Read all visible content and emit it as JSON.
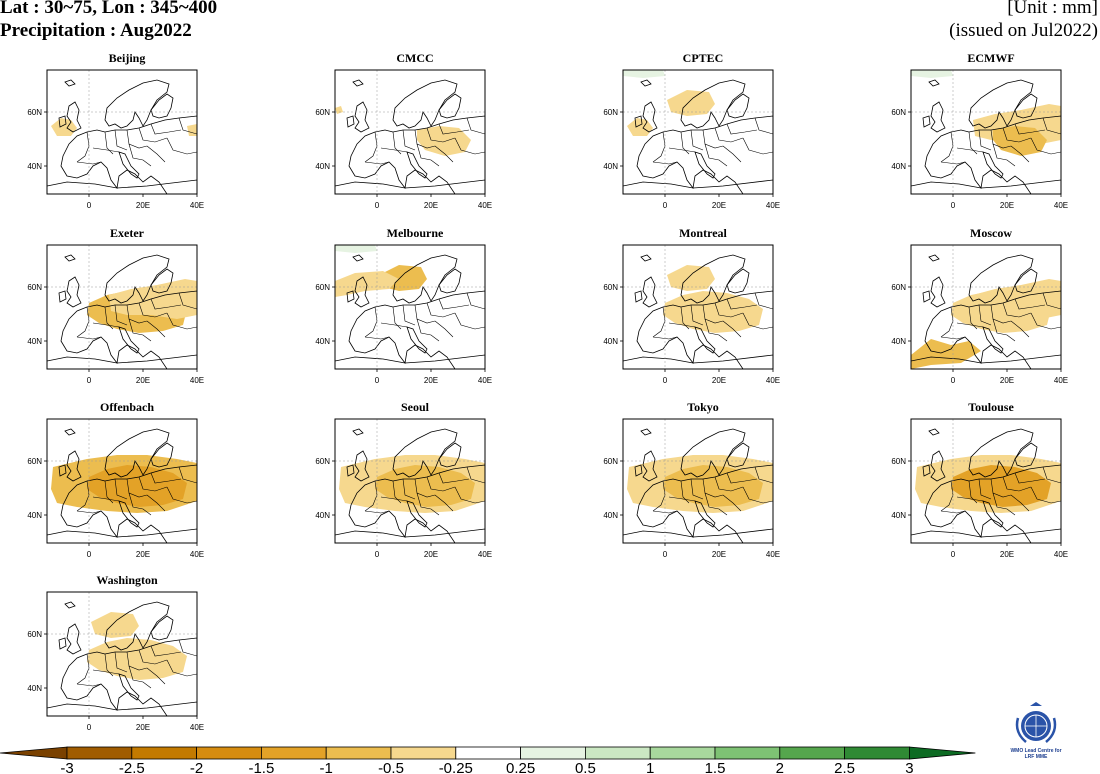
{
  "header": {
    "title_line1": "Lat : 30~75, Lon : 345~400",
    "title_line2": "Precipitation : Aug2022",
    "unit": "[Unit : mm]",
    "issued": "(issued on Jul2022)"
  },
  "axes": {
    "lat_ticks": [
      "60N",
      "40N"
    ],
    "lon_ticks": [
      "0",
      "20E",
      "40E"
    ]
  },
  "colors": {
    "dry": [
      "#7a4100",
      "#a05c00",
      "#c37a00",
      "#d68c10",
      "#e3a227",
      "#ecbd4f",
      "#f6d88e"
    ],
    "neutral": "#ffffff",
    "wet": [
      "#e6f3e2",
      "#cbe8c3",
      "#a8d89d",
      "#7ec274",
      "#55a64d",
      "#2f8a34",
      "#0d6b23"
    ]
  },
  "panels": [
    {
      "name": "Beijing",
      "pattern": [
        {
          "shape": "a",
          "level": 6
        },
        {
          "shape": "h",
          "level": 6
        }
      ]
    },
    {
      "name": "CMCC",
      "pattern": [
        {
          "shape": "b",
          "level": 6
        },
        {
          "shape": "e",
          "level": 6
        }
      ]
    },
    {
      "name": "CPTEC",
      "pattern": [
        {
          "shape": "a",
          "level": 6
        },
        {
          "shape": "c",
          "level": 6
        },
        {
          "shape": "g",
          "level": 8
        }
      ]
    },
    {
      "name": "ECMWF",
      "pattern": [
        {
          "shape": "d",
          "level": 6
        },
        {
          "shape": "e",
          "level": 5
        },
        {
          "shape": "g",
          "level": 8
        }
      ]
    },
    {
      "name": "Exeter",
      "pattern": [
        {
          "shape": "f",
          "level": 5
        },
        {
          "shape": "d",
          "level": 6
        }
      ]
    },
    {
      "name": "Melbourne",
      "pattern": [
        {
          "shape": "c",
          "level": 5
        },
        {
          "shape": "i",
          "level": 6
        },
        {
          "shape": "g",
          "level": 8
        }
      ]
    },
    {
      "name": "Montreal",
      "pattern": [
        {
          "shape": "c",
          "level": 6
        },
        {
          "shape": "f",
          "level": 6
        }
      ]
    },
    {
      "name": "Moscow",
      "pattern": [
        {
          "shape": "d",
          "level": 6
        },
        {
          "shape": "j",
          "level": 5
        },
        {
          "shape": "f",
          "level": 6
        }
      ]
    },
    {
      "name": "Offenbach",
      "pattern": [
        {
          "shape": "k",
          "level": 5
        },
        {
          "shape": "f",
          "level": 4
        }
      ]
    },
    {
      "name": "Seoul",
      "pattern": [
        {
          "shape": "k",
          "level": 6
        },
        {
          "shape": "f",
          "level": 5
        }
      ]
    },
    {
      "name": "Tokyo",
      "pattern": [
        {
          "shape": "k",
          "level": 6
        },
        {
          "shape": "f",
          "level": 5
        }
      ]
    },
    {
      "name": "Toulouse",
      "pattern": [
        {
          "shape": "k",
          "level": 6
        },
        {
          "shape": "f",
          "level": 4
        }
      ]
    },
    {
      "name": "Washington",
      "pattern": [
        {
          "shape": "c",
          "level": 6
        },
        {
          "shape": "f",
          "level": 6
        }
      ]
    }
  ],
  "colorbar": {
    "labels": [
      "-3",
      "-2.5",
      "-2",
      "-1.5",
      "-1",
      "-0.5",
      "-0.25",
      "0.25",
      "0.5",
      "1",
      "1.5",
      "2",
      "2.5",
      "3"
    ]
  },
  "logo": {
    "icon": "wmo-emblem-icon",
    "text_line1": "WMO Lead Centre for",
    "text_line2": "LRF MME"
  }
}
